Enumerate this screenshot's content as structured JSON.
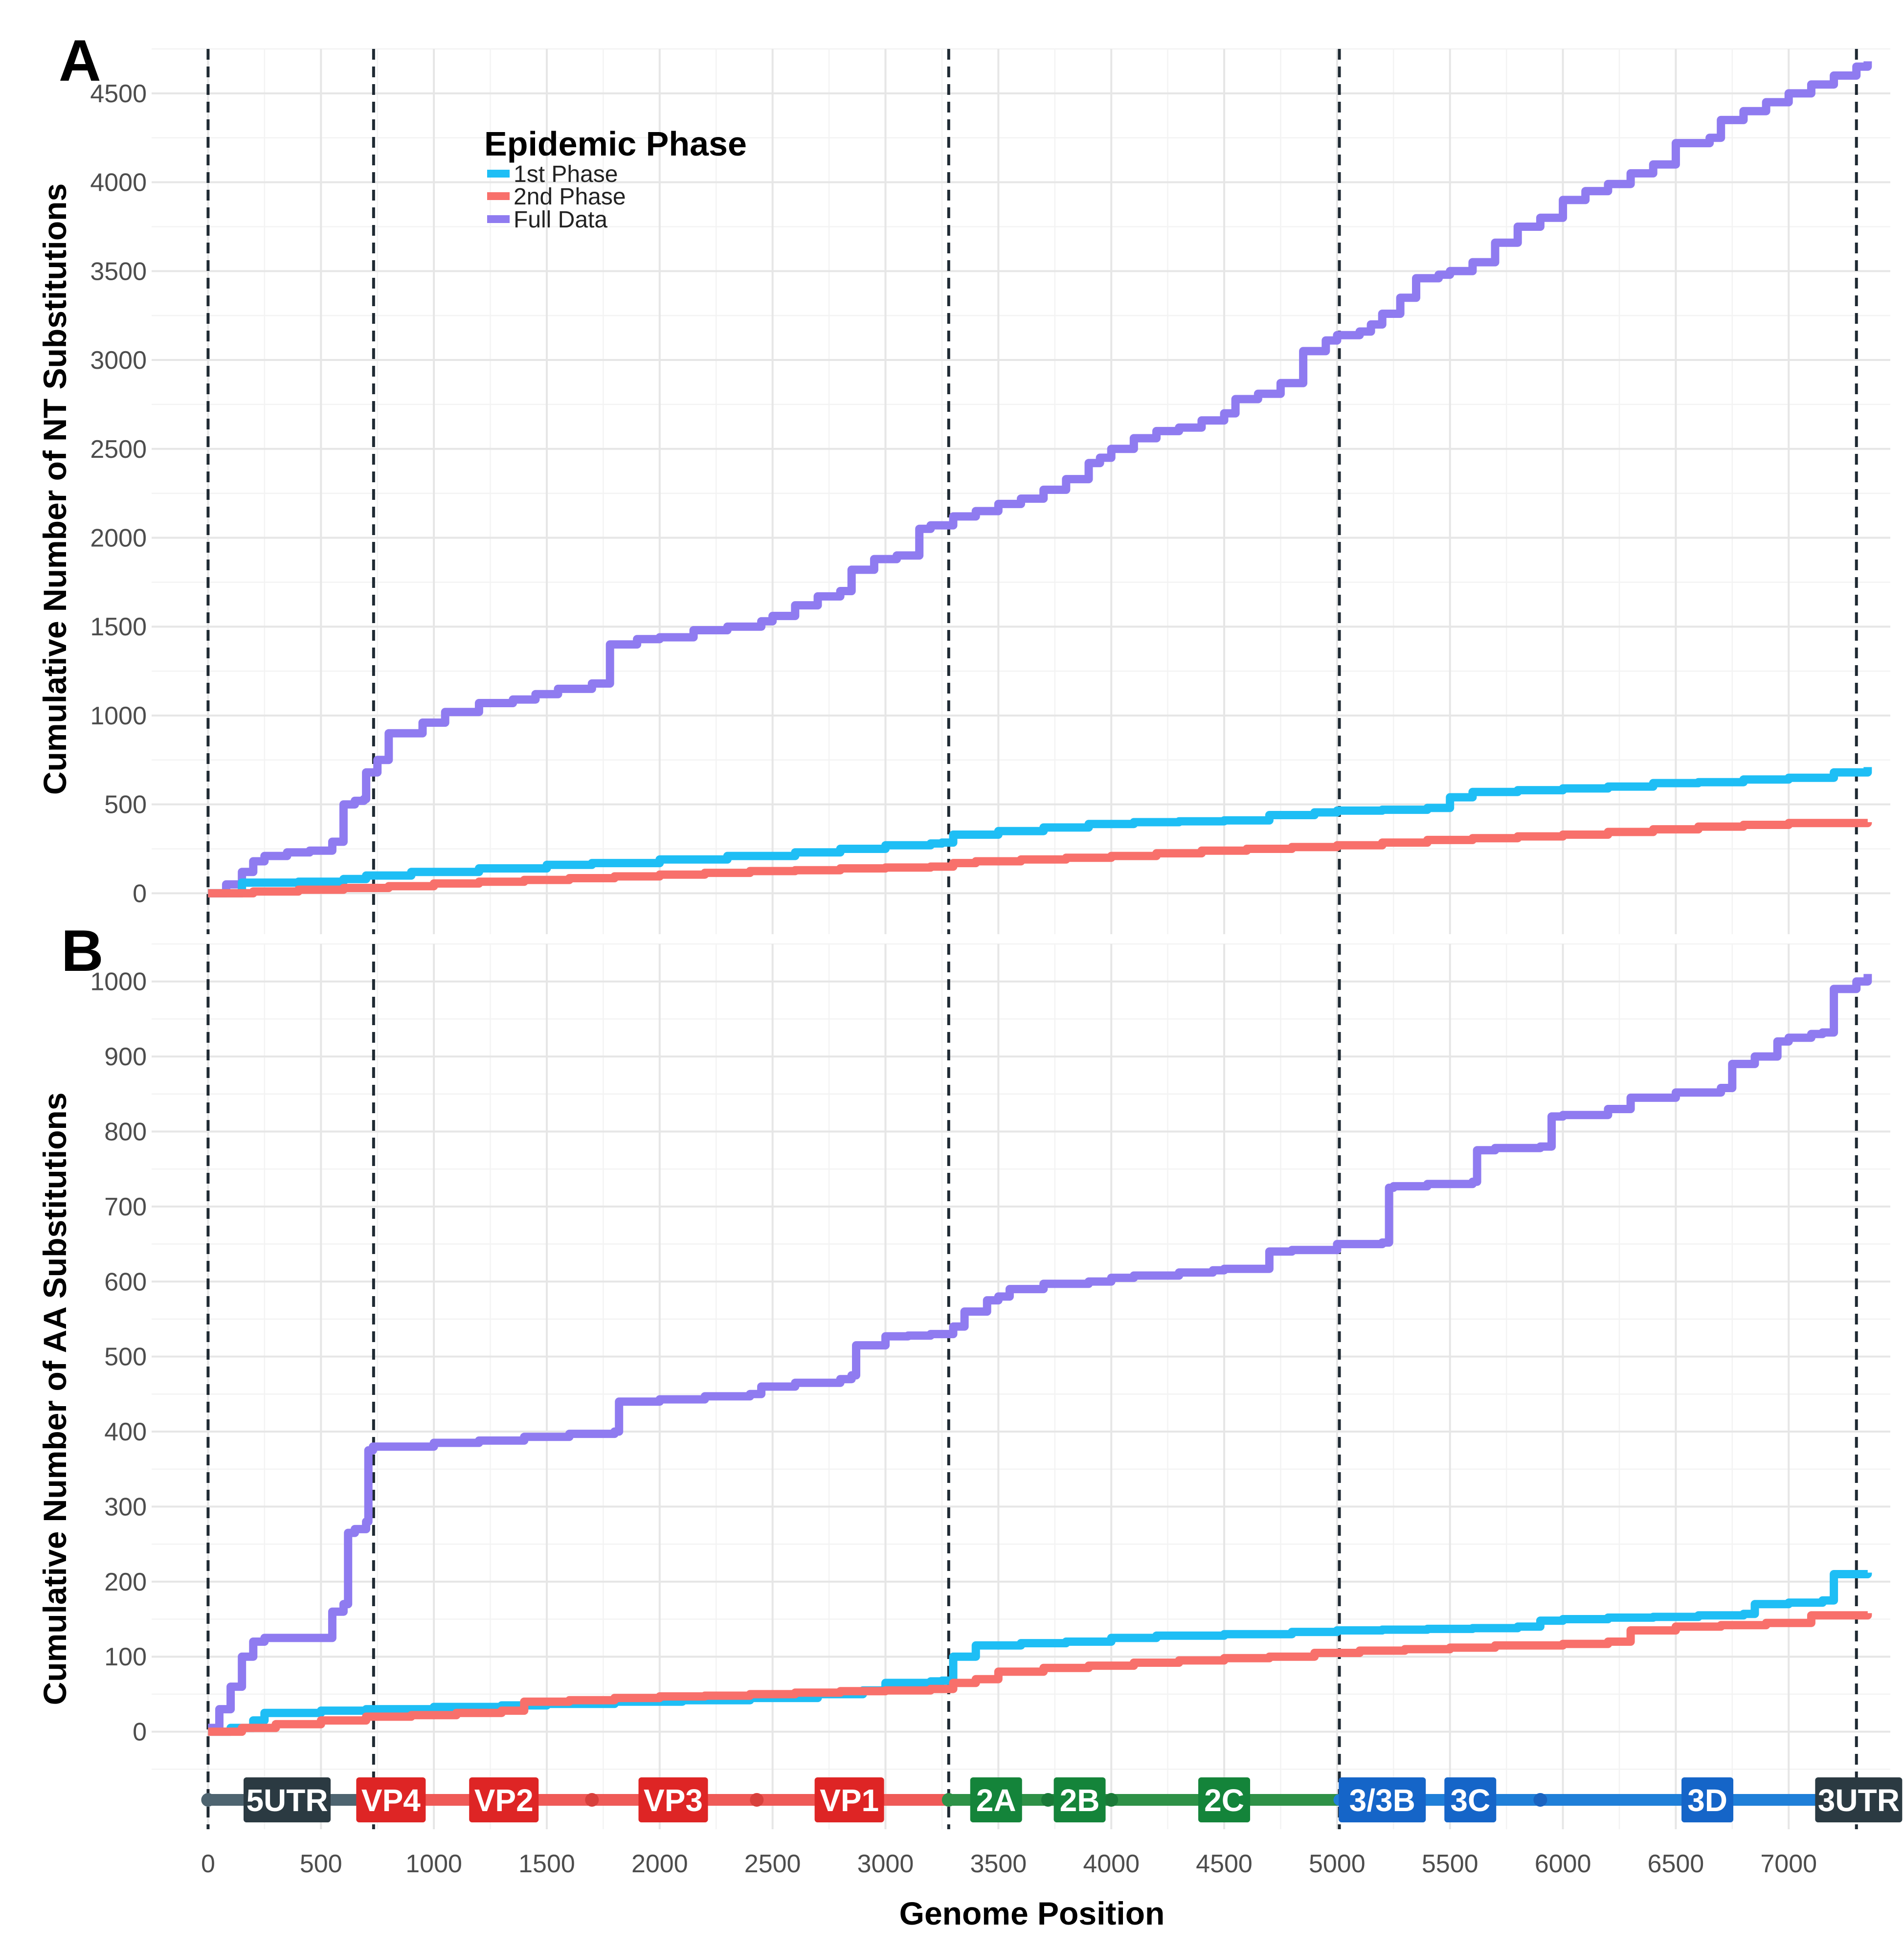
{
  "chart_data": [
    {
      "panel": "A",
      "type": "line",
      "xlabel": "Genome Position",
      "ylabel": "Cumulative Number of NT Substitutions",
      "xlim": [
        -250,
        7450
      ],
      "ylim": [
        -230,
        4750
      ],
      "x_ticks": [
        0,
        500,
        1000,
        1500,
        2000,
        2500,
        3000,
        3500,
        4000,
        4500,
        5000,
        5500,
        6000,
        6500,
        7000
      ],
      "y_ticks": [
        0,
        500,
        1000,
        1500,
        2000,
        2500,
        3000,
        3500,
        4000,
        4500
      ],
      "legend": {
        "title": "Epidemic Phase",
        "entries": [
          {
            "name": "1st Phase",
            "color": "#1ebef5"
          },
          {
            "name": "2nd Phase",
            "color": "#f8706b"
          },
          {
            "name": "Full Data",
            "color": "#8f7bf0"
          }
        ]
      },
      "series": [
        {
          "name": "Full Data",
          "color": "#8f7bf0",
          "x": [
            0,
            80,
            150,
            200,
            250,
            350,
            450,
            550,
            600,
            610,
            650,
            690,
            700,
            750,
            800,
            850,
            950,
            1050,
            1200,
            1350,
            1450,
            1550,
            1650,
            1700,
            1780,
            1900,
            2000,
            2150,
            2300,
            2450,
            2500,
            2600,
            2700,
            2800,
            2850,
            2950,
            3050,
            3150,
            3200,
            3300,
            3400,
            3500,
            3600,
            3700,
            3800,
            3900,
            3950,
            4000,
            4100,
            4200,
            4300,
            4400,
            4500,
            4550,
            4650,
            4750,
            4850,
            4950,
            5000,
            5100,
            5150,
            5200,
            5280,
            5350,
            5450,
            5500,
            5600,
            5700,
            5800,
            5900,
            6000,
            6100,
            6200,
            6300,
            6400,
            6500,
            6650,
            6700,
            6800,
            6900,
            7000,
            7100,
            7200,
            7300,
            7350
          ],
          "y": [
            0,
            50,
            120,
            180,
            210,
            230,
            240,
            290,
            500,
            500,
            520,
            530,
            680,
            750,
            900,
            900,
            960,
            1020,
            1070,
            1090,
            1120,
            1150,
            1150,
            1180,
            1400,
            1430,
            1440,
            1480,
            1500,
            1530,
            1560,
            1620,
            1670,
            1700,
            1820,
            1880,
            1900,
            2050,
            2070,
            2120,
            2150,
            2190,
            2220,
            2270,
            2330,
            2420,
            2450,
            2500,
            2560,
            2600,
            2620,
            2660,
            2700,
            2780,
            2810,
            2870,
            3050,
            3110,
            3140,
            3160,
            3200,
            3260,
            3350,
            3460,
            3480,
            3500,
            3550,
            3660,
            3750,
            3800,
            3900,
            3950,
            3990,
            4050,
            4100,
            4220,
            4250,
            4350,
            4400,
            4450,
            4500,
            4550,
            4600,
            4650,
            4680
          ]
        },
        {
          "name": "1st Phase",
          "color": "#1ebef5",
          "x": [
            0,
            150,
            400,
            600,
            700,
            900,
            1200,
            1500,
            1700,
            2000,
            2300,
            2600,
            2800,
            3000,
            3200,
            3250,
            3300,
            3500,
            3700,
            3900,
            4100,
            4300,
            4500,
            4700,
            4900,
            5000,
            5200,
            5400,
            5500,
            5600,
            5800,
            6000,
            6200,
            6400,
            6600,
            6800,
            7000,
            7200,
            7350
          ],
          "y": [
            0,
            60,
            65,
            80,
            100,
            120,
            140,
            160,
            170,
            190,
            210,
            230,
            250,
            270,
            280,
            285,
            330,
            350,
            370,
            390,
            400,
            405,
            410,
            440,
            455,
            465,
            470,
            480,
            540,
            570,
            580,
            590,
            600,
            620,
            625,
            640,
            650,
            680,
            710
          ]
        },
        {
          "name": "2nd Phase",
          "color": "#f8706b",
          "x": [
            0,
            200,
            400,
            600,
            800,
            1000,
            1200,
            1400,
            1600,
            1800,
            2000,
            2200,
            2400,
            2600,
            2800,
            3000,
            3200,
            3300,
            3400,
            3600,
            3800,
            4000,
            4200,
            4400,
            4600,
            4800,
            5000,
            5200,
            5400,
            5600,
            5800,
            6000,
            6200,
            6400,
            6600,
            6800,
            7000,
            7350
          ],
          "y": [
            0,
            10,
            20,
            30,
            40,
            55,
            65,
            75,
            85,
            95,
            105,
            115,
            125,
            130,
            140,
            145,
            150,
            170,
            180,
            190,
            200,
            210,
            225,
            240,
            250,
            260,
            270,
            285,
            300,
            310,
            320,
            330,
            345,
            360,
            375,
            385,
            395,
            400
          ]
        }
      ]
    },
    {
      "panel": "B",
      "type": "line",
      "xlabel": "Genome Position",
      "ylabel": "Cumulative Number of AA Substitutions",
      "xlim": [
        -250,
        7450
      ],
      "ylim": [
        -130,
        1050
      ],
      "x_ticks": [
        0,
        500,
        1000,
        1500,
        2000,
        2500,
        3000,
        3500,
        4000,
        4500,
        5000,
        5500,
        6000,
        6500,
        7000
      ],
      "y_ticks": [
        0,
        100,
        200,
        300,
        400,
        500,
        600,
        700,
        800,
        900,
        1000
      ],
      "series": [
        {
          "name": "Full Data",
          "color": "#8f7bf0",
          "x": [
            0,
            50,
            100,
            150,
            200,
            250,
            300,
            400,
            500,
            550,
            600,
            620,
            650,
            700,
            710,
            730,
            800,
            1000,
            1200,
            1400,
            1600,
            1800,
            1820,
            2000,
            2200,
            2400,
            2450,
            2600,
            2800,
            2850,
            2870,
            3000,
            3100,
            3200,
            3250,
            3300,
            3350,
            3450,
            3500,
            3550,
            3700,
            3900,
            4000,
            4100,
            4300,
            4450,
            4500,
            4700,
            4800,
            5000,
            5200,
            5230,
            5250,
            5400,
            5600,
            5620,
            5700,
            5900,
            5950,
            6000,
            6200,
            6300,
            6500,
            6700,
            6750,
            6850,
            6950,
            7000,
            7100,
            7150,
            7200,
            7300,
            7350
          ],
          "y": [
            5,
            30,
            60,
            100,
            120,
            125,
            125,
            125,
            125,
            160,
            170,
            265,
            270,
            280,
            375,
            380,
            380,
            385,
            388,
            393,
            397,
            400,
            440,
            443,
            447,
            450,
            460,
            465,
            470,
            475,
            515,
            527,
            528,
            530,
            530,
            540,
            560,
            575,
            580,
            590,
            597,
            600,
            605,
            608,
            612,
            615,
            617,
            640,
            642,
            650,
            652,
            725,
            727,
            730,
            733,
            775,
            778,
            780,
            820,
            822,
            830,
            845,
            852,
            858,
            890,
            900,
            920,
            925,
            930,
            932,
            990,
            1000,
            1010
          ]
        },
        {
          "name": "1st Phase",
          "color": "#1ebef5",
          "x": [
            0,
            100,
            200,
            250,
            500,
            700,
            1000,
            1300,
            1500,
            1800,
            2100,
            2400,
            2700,
            2900,
            3000,
            3200,
            3250,
            3300,
            3400,
            3600,
            3800,
            4000,
            4200,
            4500,
            4800,
            5000,
            5200,
            5400,
            5600,
            5800,
            5900,
            6000,
            6200,
            6400,
            6600,
            6800,
            6850,
            7000,
            7150,
            7200,
            7350
          ],
          "y": [
            0,
            5,
            15,
            25,
            28,
            30,
            33,
            35,
            37,
            40,
            42,
            45,
            50,
            55,
            65,
            67,
            68,
            100,
            115,
            118,
            120,
            125,
            128,
            130,
            133,
            135,
            136,
            137,
            138,
            140,
            148,
            150,
            152,
            153,
            155,
            157,
            170,
            172,
            175,
            210,
            212
          ]
        },
        {
          "name": "2nd Phase",
          "color": "#f8706b",
          "x": [
            0,
            150,
            300,
            500,
            700,
            900,
            1100,
            1300,
            1400,
            1600,
            1800,
            2000,
            2200,
            2400,
            2600,
            2800,
            3000,
            3200,
            3300,
            3400,
            3500,
            3700,
            3900,
            4100,
            4300,
            4500,
            4700,
            4900,
            5100,
            5300,
            5500,
            5700,
            6000,
            6200,
            6300,
            6500,
            6700,
            6900,
            7100,
            7350
          ],
          "y": [
            0,
            5,
            10,
            15,
            20,
            22,
            25,
            28,
            40,
            42,
            45,
            47,
            48,
            50,
            52,
            54,
            55,
            57,
            65,
            70,
            80,
            85,
            88,
            92,
            95,
            98,
            100,
            105,
            108,
            110,
            112,
            115,
            117,
            120,
            135,
            140,
            142,
            145,
            155,
            158
          ]
        }
      ]
    }
  ],
  "panel_a_tag": "A",
  "panel_b_tag": "B",
  "boundaries": [
    0,
    733,
    3280,
    5010,
    7300
  ],
  "genome_bar": {
    "segments": [
      {
        "from": 0,
        "to": 733,
        "color": "#4e6470"
      },
      {
        "from": 733,
        "to": 3280,
        "color": "#ef5a57"
      },
      {
        "from": 3280,
        "to": 5010,
        "color": "#2e9147"
      },
      {
        "from": 5010,
        "to": 7300,
        "color": "#1f7fd8"
      },
      {
        "from": 7300,
        "to": 7350,
        "color": "#4e6470"
      }
    ],
    "dots": [
      {
        "x": 0,
        "color": "#4e6470"
      },
      {
        "x": 1700,
        "color": "#d8403c"
      },
      {
        "x": 2430,
        "color": "#d8403c"
      },
      {
        "x": 3280,
        "color": "#2e9147"
      },
      {
        "x": 3720,
        "color": "#1a7a38"
      },
      {
        "x": 4000,
        "color": "#1a7a38"
      },
      {
        "x": 5900,
        "color": "#1a63c0"
      }
    ],
    "labels": [
      {
        "text": "5UTR",
        "x": 350,
        "color": "#2b3a42"
      },
      {
        "text": "VP4",
        "x": 810,
        "color": "#de2525"
      },
      {
        "text": "VP2",
        "x": 1310,
        "color": "#de2525"
      },
      {
        "text": "VP3",
        "x": 2060,
        "color": "#de2525"
      },
      {
        "text": "VP1",
        "x": 2840,
        "color": "#de2525"
      },
      {
        "text": "2A",
        "x": 3490,
        "color": "#14843a"
      },
      {
        "text": "2B",
        "x": 3860,
        "color": "#14843a"
      },
      {
        "text": "2C",
        "x": 4500,
        "color": "#14843a"
      },
      {
        "text": "3/3B",
        "x": 5200,
        "color": "#1565c8"
      },
      {
        "text": "3C",
        "x": 5590,
        "color": "#1565c8"
      },
      {
        "text": "3D",
        "x": 6640,
        "color": "#1565c8"
      },
      {
        "text": "3UTR",
        "x": 7310,
        "color": "#2b3a42"
      }
    ]
  }
}
